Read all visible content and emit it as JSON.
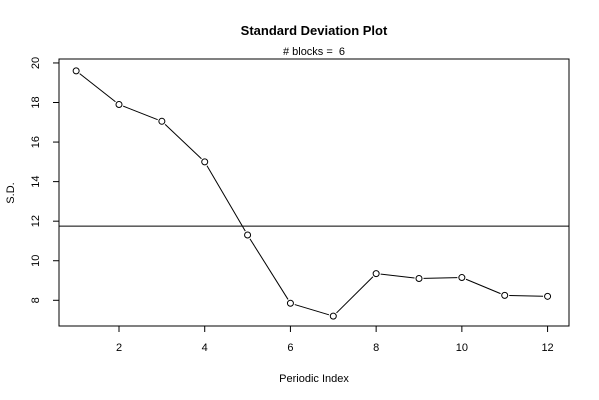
{
  "chart_data": {
    "type": "line",
    "title": "Standard Deviation Plot",
    "subtitle": "# blocks =  6",
    "xlabel": "Periodic Index",
    "ylabel": "S.D.",
    "x": [
      1,
      2,
      3,
      4,
      5,
      6,
      7,
      8,
      9,
      10,
      11,
      12
    ],
    "series": [
      {
        "values": [
          19.6,
          17.9,
          17.05,
          15.0,
          11.3,
          7.85,
          7.2,
          9.35,
          9.1,
          9.15,
          8.25,
          8.2
        ]
      }
    ],
    "reference_line_y": 11.75,
    "xlim": [
      0.6,
      12.5
    ],
    "ylim": [
      6.7,
      20.2
    ],
    "xticks": [
      2,
      4,
      6,
      8,
      10,
      12
    ],
    "yticks": [
      8,
      10,
      12,
      14,
      16,
      18,
      20
    ],
    "marker": "open-circle",
    "grid": false,
    "colors": {
      "line": "#000000",
      "background": "#ffffff"
    }
  }
}
